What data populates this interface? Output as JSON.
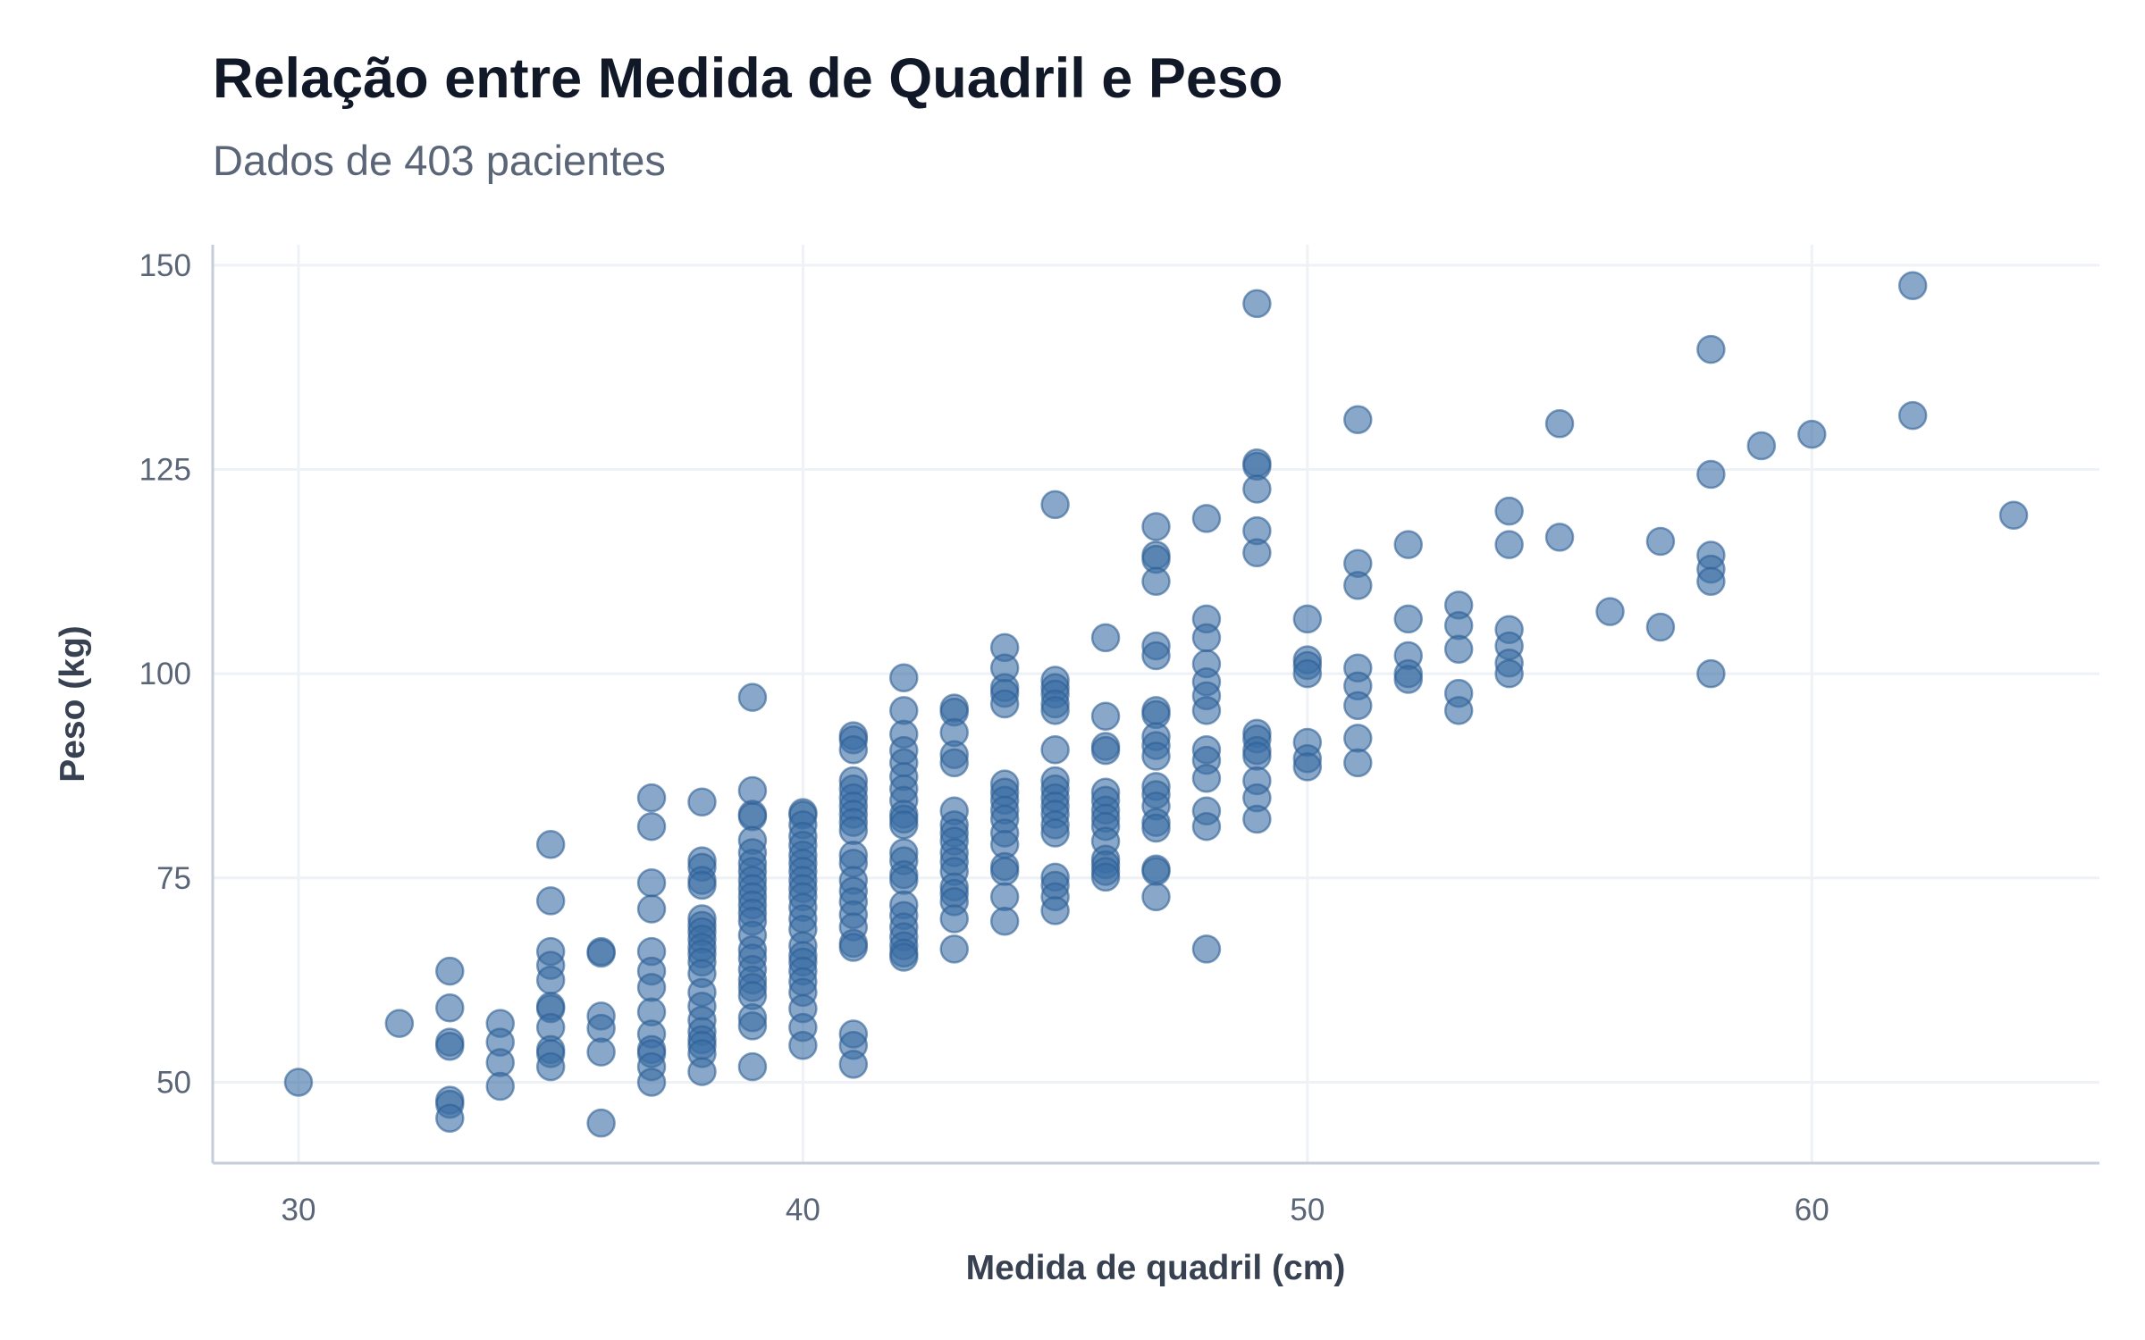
{
  "chart_data": {
    "type": "scatter",
    "title": "Relação entre Medida de Quadril e Peso",
    "subtitle": "Dados de 403 pacientes",
    "xlabel": "Medida de quadril (cm)",
    "ylabel": "Peso (kg)",
    "xlim": [
      28.3,
      65.7
    ],
    "ylim": [
      40.1,
      152.5
    ],
    "xticks": [
      30,
      40,
      50,
      60
    ],
    "yticks": [
      50,
      75,
      100,
      125,
      150
    ],
    "grid": true,
    "point_color": "#3a6ea5",
    "points": [
      {
        "x": 30,
        "y": [
          50
        ]
      },
      {
        "x": 32,
        "y": [
          57.2
        ]
      },
      {
        "x": 33,
        "y": [
          63.6,
          59.1,
          54.9,
          54.4,
          47.8,
          47.3,
          45.6
        ]
      },
      {
        "x": 34,
        "y": [
          57.2,
          54.9,
          52.4,
          49.5
        ]
      },
      {
        "x": 35,
        "y": [
          79.1,
          72.2,
          66,
          64.3,
          62.5,
          59.3,
          59,
          56.7,
          54,
          53.5,
          51.9
        ]
      },
      {
        "x": 36,
        "y": [
          66,
          65.8,
          58.1,
          56.6,
          53.7,
          45
        ]
      },
      {
        "x": 37,
        "y": [
          84.8,
          81.3,
          74.4,
          71.2,
          66,
          63.6,
          61.6,
          58.6,
          55.9,
          54,
          53.5,
          51.9,
          50
        ]
      },
      {
        "x": 38,
        "y": [
          84.3,
          77.1,
          76.3,
          74.7,
          74.1,
          70,
          69.2,
          68.4,
          67.5,
          66.5,
          65.7,
          64.7,
          63.3,
          61,
          59.3,
          57.6,
          56.2,
          55.2,
          54.5,
          53.5,
          51.3
        ]
      },
      {
        "x": 39,
        "y": [
          97.1,
          85.7,
          82.8,
          82.5,
          79.6,
          78.1,
          76.8,
          75.8,
          74.7,
          73.7,
          72.7,
          71.7,
          70.7,
          69.7,
          68,
          66.2,
          65.2,
          63.8,
          62.5,
          61.6,
          60.6,
          57.9,
          56.9,
          51.9
        ]
      },
      {
        "x": 40,
        "y": [
          83,
          82.7,
          81.5,
          80.1,
          79,
          77.8,
          76.8,
          75.8,
          74.7,
          73.7,
          72.7,
          71.4,
          70,
          68.7,
          66.7,
          65.5,
          64.7,
          63.6,
          62.3,
          61,
          59,
          56.7,
          54.5
        ]
      },
      {
        "x": 41,
        "y": [
          92.4,
          91.9,
          90.7,
          86.9,
          85.9,
          84.8,
          83.8,
          82.8,
          81.8,
          80.8,
          77.8,
          76.8,
          74.7,
          73.4,
          72.1,
          70.5,
          69,
          67,
          66.5,
          55.9,
          54.5,
          52.2
        ]
      },
      {
        "x": 42,
        "y": [
          99.5,
          95.5,
          92.6,
          90.6,
          89.1,
          87.4,
          85.9,
          84.5,
          82.8,
          82.2,
          81.5,
          78.1,
          77.1,
          75.4,
          74.7,
          71.7,
          70.4,
          69,
          67.8,
          66.7,
          65.8,
          65.3
        ]
      },
      {
        "x": 43,
        "y": [
          95.8,
          95.3,
          92.8,
          90.1,
          89.1,
          83.2,
          81.5,
          80.5,
          79.5,
          78.1,
          77,
          75.8,
          73.9,
          73.1,
          72.1,
          70,
          66.3
        ]
      },
      {
        "x": 44,
        "y": [
          103.2,
          100.7,
          98.3,
          97.6,
          96.3,
          86.5,
          85.5,
          84.5,
          83.3,
          82.2,
          80.5,
          79.1,
          76.4,
          75.8,
          72.7,
          69.7
        ]
      },
      {
        "x": 45,
        "y": [
          120.7,
          99.2,
          98.3,
          97.5,
          96.3,
          95.5,
          90.7,
          86.9,
          85.9,
          84.8,
          83.8,
          82.8,
          81.5,
          80.5,
          75.1,
          74.1,
          72.7,
          71
        ]
      },
      {
        "x": 46,
        "y": [
          104.4,
          94.8,
          91.1,
          90.6,
          85.5,
          84.5,
          83.3,
          82.3,
          81.3,
          79.5,
          77.3,
          76.6,
          75.8,
          75.1
        ]
      },
      {
        "x": 47,
        "y": [
          118,
          114.5,
          114,
          111.3,
          103.4,
          102.2,
          95.5,
          95,
          92.3,
          91.2,
          89.9,
          86.2,
          85.2,
          83.8,
          81.8,
          81.1,
          76.1,
          75.8,
          72.7
        ]
      },
      {
        "x": 48,
        "y": [
          119,
          106.7,
          104.4,
          101.2,
          99,
          97.3,
          95.5,
          90.7,
          89.4,
          87.2,
          83.2,
          81.3,
          66.3
        ]
      },
      {
        "x": 49,
        "y": [
          145.3,
          125.8,
          125.4,
          122.6,
          117.5,
          114.8,
          92.7,
          92,
          90.6,
          89.9,
          86.9,
          84.8,
          82.2
        ]
      },
      {
        "x": 50,
        "y": [
          106.7,
          101.7,
          101,
          100,
          91.6,
          89.6,
          88.6
        ]
      },
      {
        "x": 51,
        "y": [
          131.1,
          113.5,
          110.8,
          100.7,
          98.5,
          96.1,
          92.1,
          89.1
        ]
      },
      {
        "x": 52,
        "y": [
          115.8,
          106.7,
          102.2,
          100,
          99.3
        ]
      },
      {
        "x": 53,
        "y": [
          108.4,
          105.9,
          103,
          97.6,
          95.5
        ]
      },
      {
        "x": 54,
        "y": [
          119.9,
          115.8,
          105.4,
          103.4,
          101.3,
          100
        ]
      },
      {
        "x": 55,
        "y": [
          130.6,
          116.7
        ]
      },
      {
        "x": 56,
        "y": [
          107.6
        ]
      },
      {
        "x": 57,
        "y": [
          116.2,
          105.7
        ]
      },
      {
        "x": 58,
        "y": [
          139.7,
          124.4,
          114.5,
          112.8,
          111.3,
          100
        ]
      },
      {
        "x": 59,
        "y": [
          127.9
        ]
      },
      {
        "x": 60,
        "y": [
          129.3
        ]
      },
      {
        "x": 62,
        "y": [
          147.5,
          131.6
        ]
      },
      {
        "x": 64,
        "y": [
          119.4
        ]
      }
    ]
  }
}
